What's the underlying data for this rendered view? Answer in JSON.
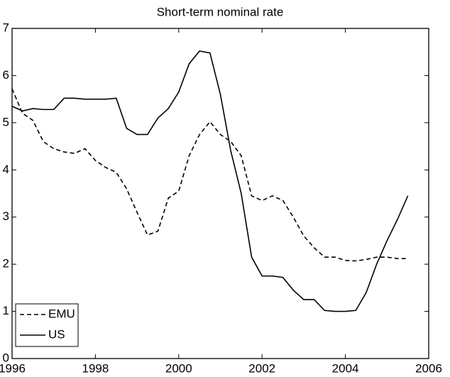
{
  "chart_data": {
    "type": "line",
    "title": "Short-term nominal rate",
    "x": [
      1996,
      1996.25,
      1996.5,
      1996.75,
      1997,
      1997.25,
      1997.5,
      1997.75,
      1998,
      1998.25,
      1998.5,
      1998.75,
      1999,
      1999.25,
      1999.5,
      1999.75,
      2000,
      2000.25,
      2000.5,
      2000.75,
      2001,
      2001.25,
      2001.5,
      2001.75,
      2002,
      2002.25,
      2002.5,
      2002.75,
      2003,
      2003.25,
      2003.5,
      2003.75,
      2004,
      2004.25,
      2004.5,
      2004.75,
      2005,
      2005.25,
      2005.5
    ],
    "series": [
      {
        "name": "EMU",
        "color": "#000000",
        "dash": true,
        "values": [
          5.72,
          5.2,
          5.05,
          4.6,
          4.45,
          4.38,
          4.35,
          4.45,
          4.2,
          4.05,
          3.95,
          3.6,
          3.1,
          2.62,
          2.7,
          3.4,
          3.55,
          4.3,
          4.75,
          5.02,
          4.75,
          4.6,
          4.3,
          3.45,
          3.35,
          3.45,
          3.35,
          3.0,
          2.6,
          2.35,
          2.15,
          2.15,
          2.08,
          2.07,
          2.1,
          2.15,
          2.15,
          2.12,
          2.12
        ]
      },
      {
        "name": "US",
        "color": "#000000",
        "dash": false,
        "values": [
          5.35,
          5.25,
          5.3,
          5.28,
          5.28,
          5.52,
          5.52,
          5.5,
          5.5,
          5.5,
          5.52,
          4.88,
          4.75,
          4.75,
          5.1,
          5.3,
          5.65,
          6.25,
          6.52,
          6.48,
          5.6,
          4.4,
          3.5,
          2.15,
          1.75,
          1.75,
          1.72,
          1.45,
          1.25,
          1.25,
          1.02,
          1.0,
          1.0,
          1.02,
          1.4,
          2.0,
          2.5,
          2.95,
          3.45
        ]
      }
    ],
    "xlim": [
      1996,
      2006
    ],
    "xticks": [
      1996,
      1998,
      2000,
      2002,
      2004,
      2006
    ],
    "ylim": [
      0,
      7
    ],
    "yticks": [
      0,
      1,
      2,
      3,
      4,
      5,
      6,
      7
    ],
    "legend": "lower left"
  }
}
